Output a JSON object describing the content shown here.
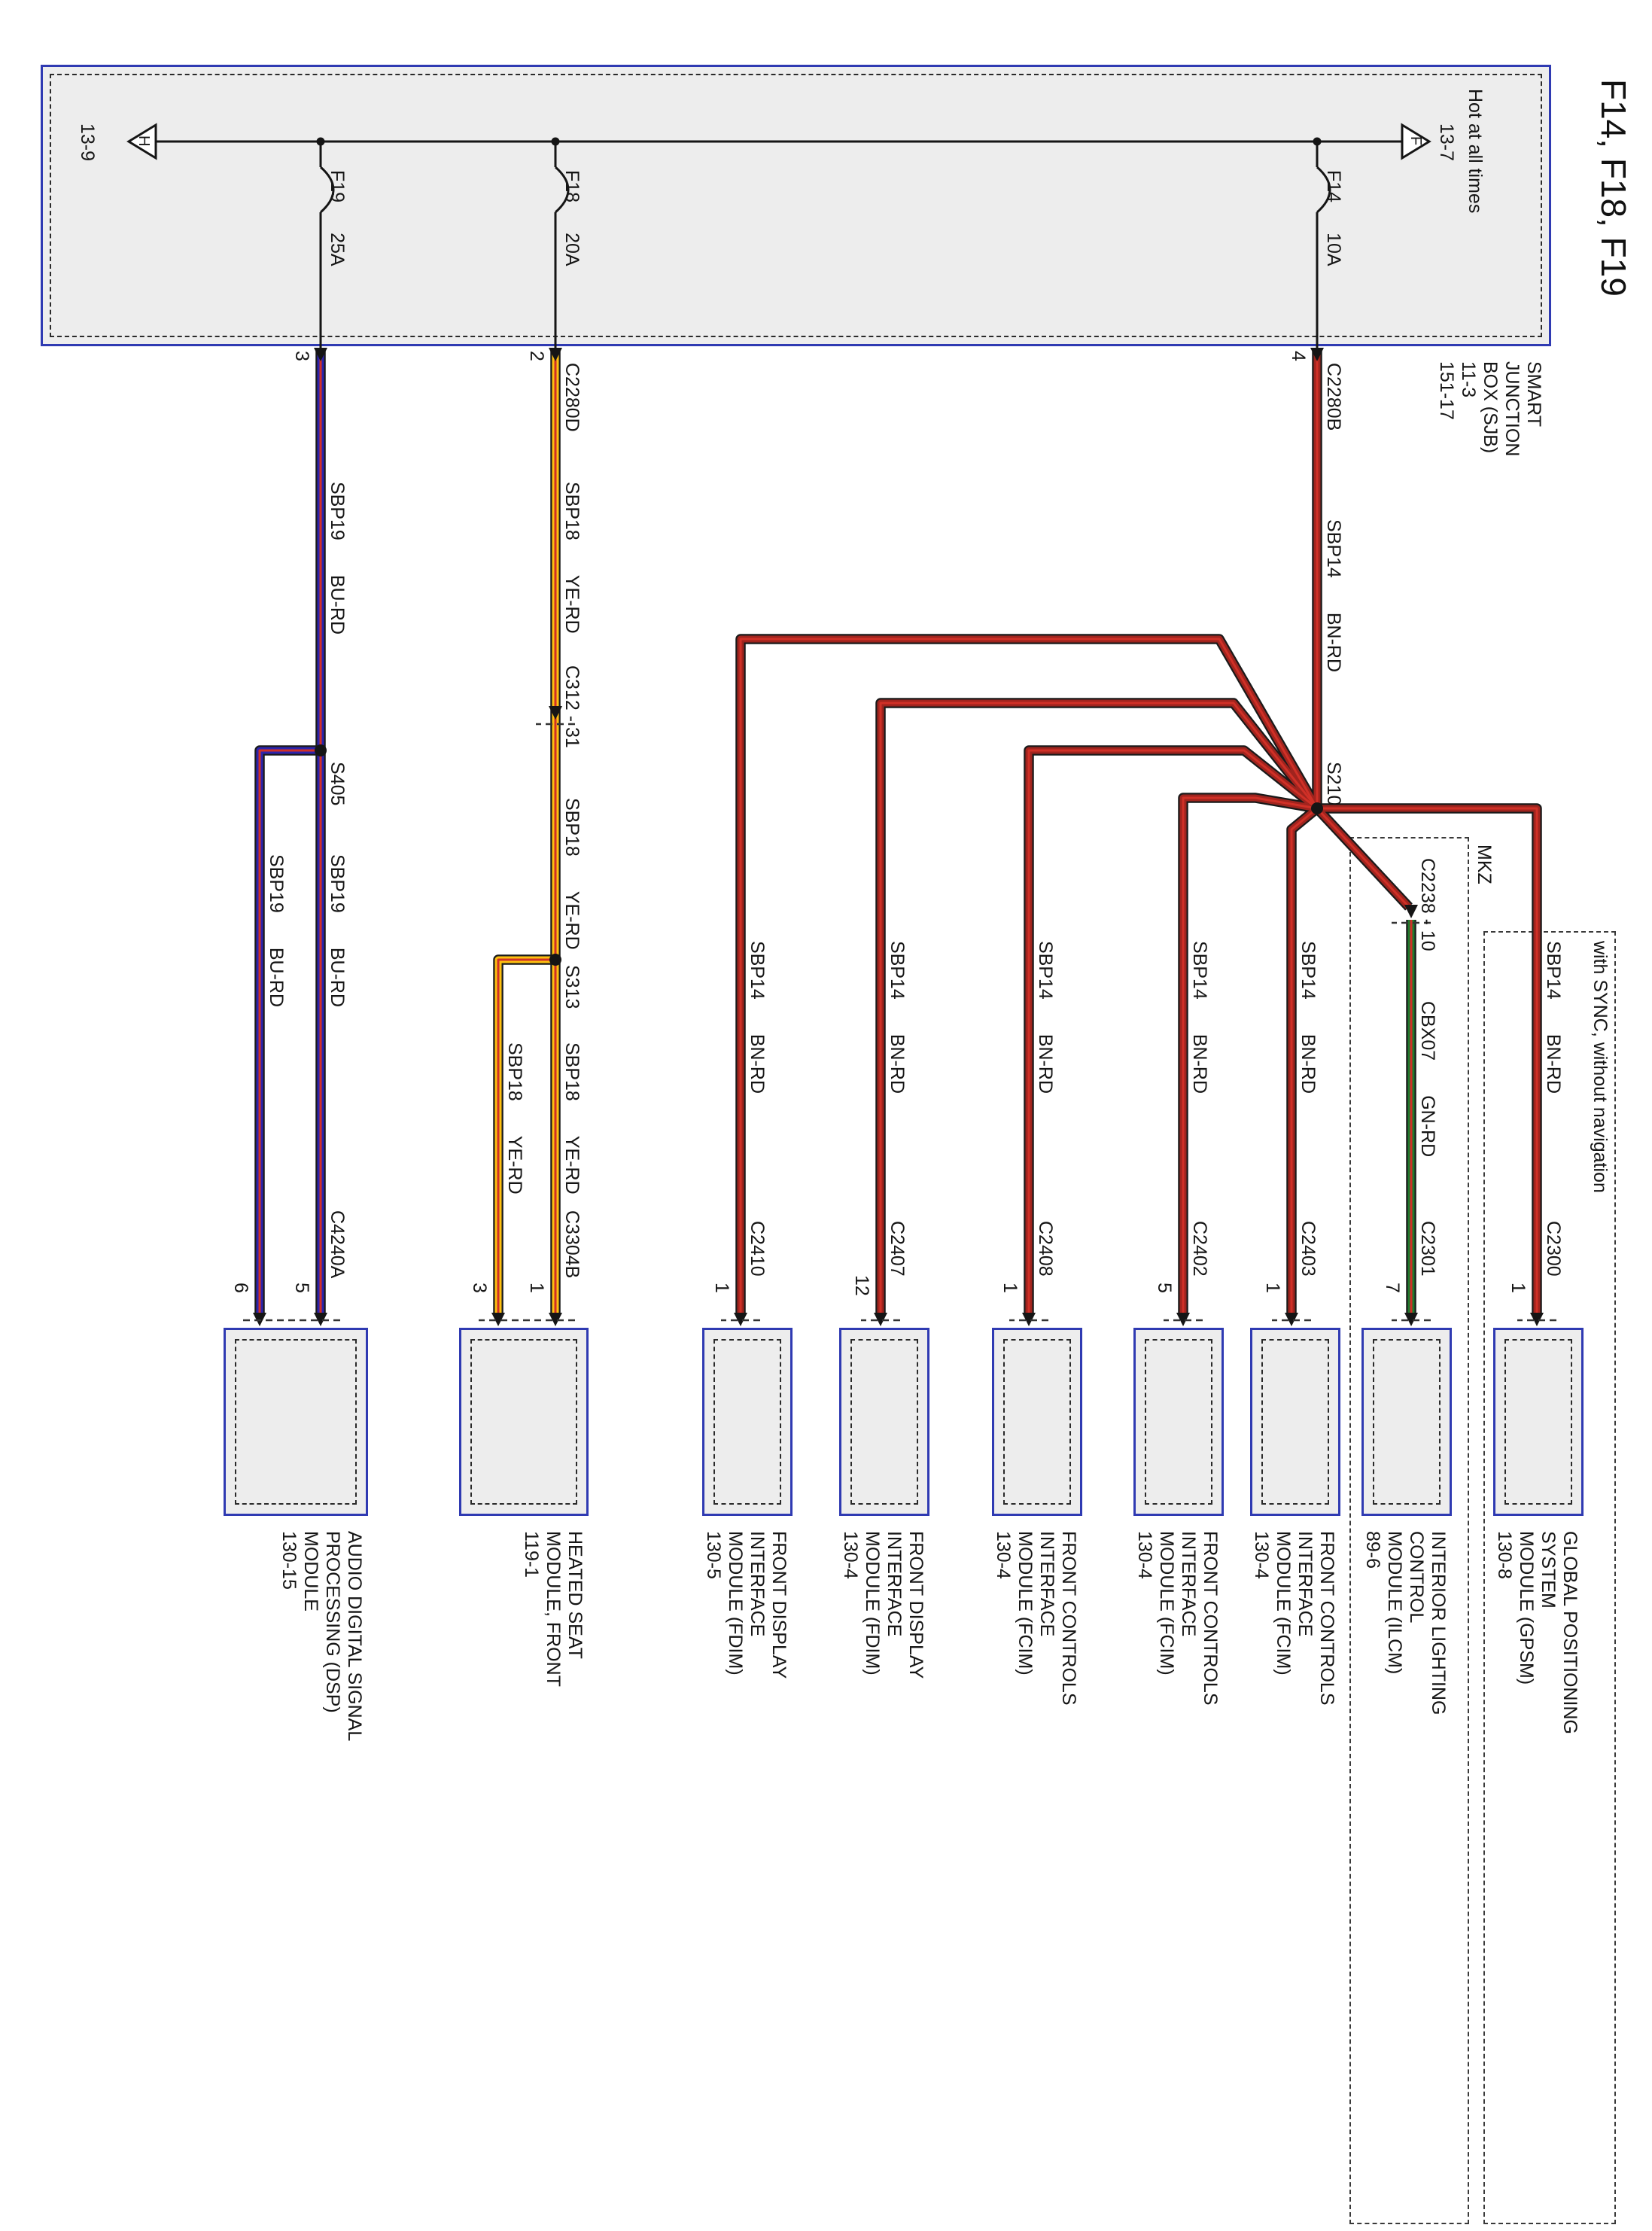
{
  "title": "F14, F18, F19",
  "colors": {
    "box_border": "#2f3ab2",
    "box_fill": "#ededed",
    "wire_bu": "#2d24ad",
    "wire_ye": "#fdc010",
    "wire_gn": "#1f7a2e",
    "wire_bn": "#a0241e",
    "stripe_rd": "#d03027"
  },
  "power": {
    "hot_label": "Hot at all times",
    "hot_ref": "13-7",
    "f_terminal": "F",
    "h_terminal": "H",
    "h_ref": "13-9"
  },
  "sjb": {
    "name_lines": [
      "SMART",
      "JUNCTION",
      "BOX (SJB)",
      "11-3",
      "151-17"
    ],
    "fuses": [
      {
        "name": "F14",
        "rating": "10A",
        "pin": "4",
        "connector": "C2280B"
      },
      {
        "name": "F18",
        "rating": "20A",
        "pin": "2",
        "connector": "C2280D"
      },
      {
        "name": "F19",
        "rating": "25A",
        "pin": "3"
      }
    ]
  },
  "splices": {
    "s210": "S210",
    "s313": "S313",
    "s405": "S405"
  },
  "inline_connectors": {
    "c312": "C312 - 31",
    "c2238": "C2238 - 10"
  },
  "wires": {
    "sbp14": {
      "circuit": "SBP14",
      "color_code": "BN-RD"
    },
    "sbp18": {
      "circuit": "SBP18",
      "color_code": "YE-RD"
    },
    "sbp19": {
      "circuit": "SBP19",
      "color_code": "BU-RD"
    },
    "cbx07": {
      "circuit": "CBX07",
      "color_code": "GN-RD"
    }
  },
  "groups": {
    "mkz": "MKZ",
    "sync": "with SYNC, without navigation"
  },
  "modules": [
    {
      "connector": "C2300",
      "pins": [
        "1"
      ],
      "lines": [
        "GLOBAL POSITIONING",
        "SYSTEM",
        "MODULE (GPSM)",
        "130-8"
      ]
    },
    {
      "connector": "C2301",
      "pins": [
        "7"
      ],
      "lines": [
        "INTERIOR LIGHTING",
        "CONTROL",
        "MODULE (ILCM)",
        "89-6"
      ]
    },
    {
      "connector": "C2403",
      "pins": [
        "1"
      ],
      "lines": [
        "FRONT CONTROLS",
        "INTERFACE",
        "MODULE (FCIM)",
        "130-4"
      ]
    },
    {
      "connector": "C2402",
      "pins": [
        "5"
      ],
      "lines": [
        "FRONT CONTROLS",
        "INTERFACE",
        "MODULE (FCIM)",
        "130-4"
      ]
    },
    {
      "connector": "C2408",
      "pins": [
        "1"
      ],
      "lines": [
        "FRONT CONTROLS",
        "INTERFACE",
        "MODULE (FCIM)",
        "130-4"
      ]
    },
    {
      "connector": "C2407",
      "pins": [
        "12"
      ],
      "lines": [
        "FRONT DISPLAY",
        "INTERFACE",
        "MODULE (FDIM)",
        "130-4"
      ]
    },
    {
      "connector": "C2410",
      "pins": [
        "1"
      ],
      "lines": [
        "FRONT DISPLAY",
        "INTERFACE",
        "MODULE (FDIM)",
        "130-5"
      ]
    },
    {
      "connector": "C3304B",
      "pins": [
        "1",
        "3"
      ],
      "lines": [
        "HEATED SEAT",
        "MODULE, FRONT",
        "119-1"
      ]
    },
    {
      "connector": "C4240A",
      "pins": [
        "5",
        "6"
      ],
      "lines": [
        "AUDIO DIGITAL SIGNAL",
        "PROCESSING (DSP)",
        "MODULE",
        "130-15"
      ]
    }
  ]
}
